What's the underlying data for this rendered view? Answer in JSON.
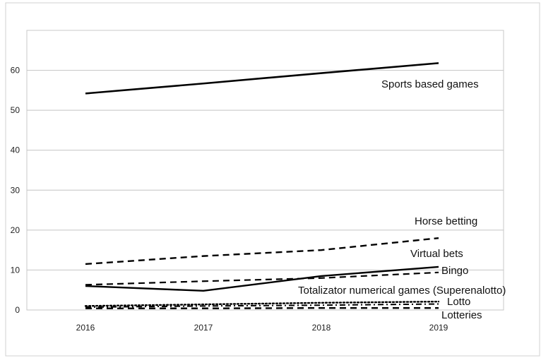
{
  "chart_data": {
    "type": "line",
    "x": [
      "2016",
      "2017",
      "2018",
      "2019"
    ],
    "ylim": [
      0,
      70
    ],
    "yticks": [
      "0",
      "10",
      "20",
      "30",
      "40",
      "50",
      "60"
    ],
    "grid": "horizontal",
    "series": [
      {
        "name": "Sports based games",
        "values": [
          54.2,
          56.7,
          59.3,
          61.8
        ],
        "style": "solid",
        "width": 2.6
      },
      {
        "name": "Horse betting",
        "values": [
          11.5,
          13.5,
          15.0,
          18.0
        ],
        "style": "dashed",
        "width": 2.4
      },
      {
        "name": "Virtual bets",
        "values": [
          6.0,
          4.8,
          8.5,
          10.8
        ],
        "style": "solid",
        "width": 2.4
      },
      {
        "name": "Bingo",
        "values": [
          6.3,
          7.2,
          8.0,
          9.4
        ],
        "style": "dashed",
        "width": 2.2
      },
      {
        "name": "Totalizator numerical games (Superenalotto)",
        "values": [
          1.0,
          1.4,
          1.8,
          2.1
        ],
        "style": "dotted",
        "width": 2.4
      },
      {
        "name": "Lotto",
        "values": [
          0.7,
          1.0,
          1.2,
          1.5
        ],
        "style": "dashdot",
        "width": 2.0
      },
      {
        "name": "Lotteries",
        "values": [
          0.4,
          0.4,
          0.5,
          0.5
        ],
        "style": "dashed",
        "width": 2.4
      }
    ]
  }
}
